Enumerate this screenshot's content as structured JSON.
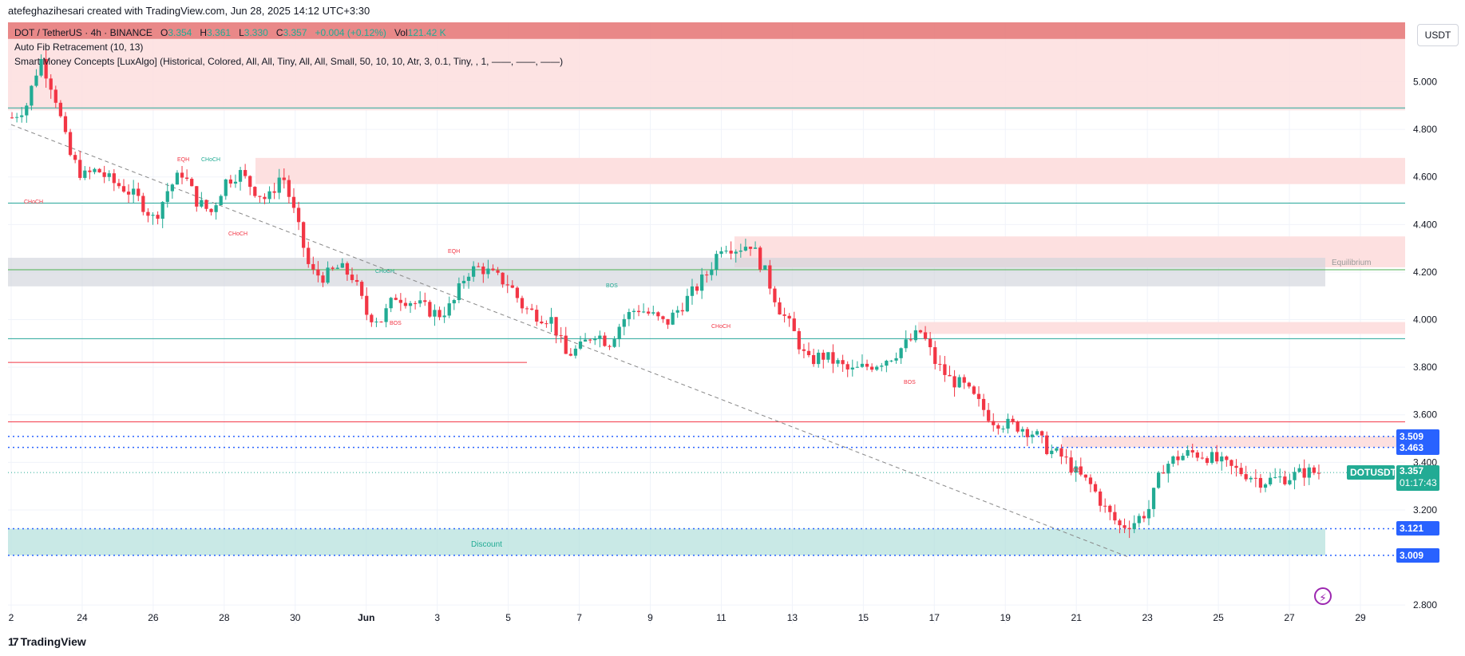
{
  "header": {
    "attribution": "atefeghazihesari created with TradingView.com, Jun 28, 2025 14:12 UTC+3:30"
  },
  "legend": {
    "symbol": "DOT / TetherUS · 4h · BINANCE",
    "o_label": "O",
    "o": "3.354",
    "h_label": "H",
    "h": "3.361",
    "l_label": "L",
    "l": "3.330",
    "c_label": "C",
    "c": "3.357",
    "change": "+0.004 (+0.12%)",
    "vol_label": "Vol",
    "vol": "121.42 K",
    "indicator1": "Auto Fib Retracement (10, 13)",
    "indicator2": "Smart Money Concepts [LuxAlgo] (Historical, Colored, All, All, Tiny, All, All, Small, 50, 10, 10, Atr, 3, 0.1, Tiny, , 1, ——, ——, ——)"
  },
  "currency_button": "USDT",
  "footer": {
    "brand": "TradingView"
  },
  "chart_data": {
    "type": "candlestick",
    "ylim": [
      2.72,
      5.25
    ],
    "y_ticks": [
      "5.000",
      "4.800",
      "4.600",
      "4.400",
      "4.200",
      "4.000",
      "3.800",
      "3.600",
      "3.400",
      "3.200",
      "2.800"
    ],
    "x_ticks": [
      "2",
      "24",
      "26",
      "28",
      "30",
      "Jun",
      "3",
      "5",
      "7",
      "9",
      "11",
      "13",
      "15",
      "17",
      "19",
      "21",
      "23",
      "25",
      "27",
      "29"
    ],
    "last_price": {
      "label": "DOTUSDT",
      "value": "3.357",
      "countdown": "01:17:43"
    },
    "price_labels": [
      "3.509",
      "3.463",
      "3.121",
      "3.009"
    ],
    "close_path": [
      4.85,
      4.9,
      5.1,
      4.95,
      4.7,
      4.6,
      4.63,
      4.58,
      4.55,
      4.5,
      4.42,
      4.55,
      4.62,
      4.5,
      4.45,
      4.58,
      4.62,
      4.55,
      4.5,
      4.62,
      4.42,
      4.2,
      4.18,
      4.22,
      4.18,
      4.02,
      4.0,
      4.1,
      4.08,
      4.05,
      4.02,
      4.06,
      4.2,
      4.22,
      4.18,
      4.15,
      4.05,
      4.02,
      4.0,
      3.85,
      3.88,
      3.95,
      3.9,
      4.0,
      4.05,
      4.02,
      3.98,
      4.05,
      4.12,
      4.2,
      4.32,
      4.3,
      4.32,
      4.2,
      4.05,
      3.95,
      3.82,
      3.85,
      3.82,
      3.78,
      3.8,
      3.82,
      3.85,
      3.9,
      3.95,
      3.82,
      3.75,
      3.72,
      3.65,
      3.58,
      3.56,
      3.55,
      3.52,
      3.45,
      3.42,
      3.35,
      3.3,
      3.2,
      3.13,
      3.15,
      3.2,
      3.38,
      3.42,
      3.44,
      3.43,
      3.4,
      3.37,
      3.35,
      3.32,
      3.33,
      3.34,
      3.36,
      3.357
    ],
    "annotations": [
      "EQH",
      "CHoCH",
      "CHoCH",
      "CHoCH",
      "EQH",
      "CHoCH",
      "BOS",
      "BOS",
      "CHoCH",
      "BOS",
      "BOS",
      "Equilibrium",
      "Discount"
    ],
    "grid": true
  },
  "colors": {
    "up": "#22ab94",
    "down": "#f23645",
    "premium": "#f2364533",
    "discount": "#22ab9433",
    "label_blue": "#2962ff"
  }
}
